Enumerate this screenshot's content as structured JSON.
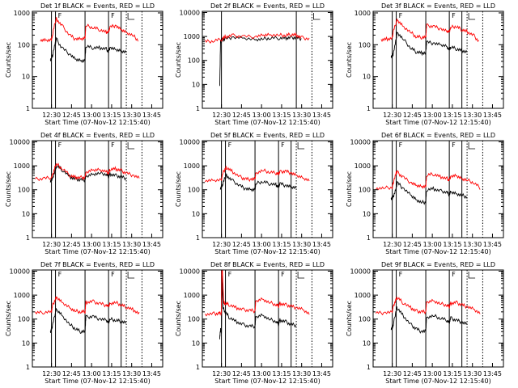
{
  "figure": {
    "xlabel": "Start Time (07-Nov-12 12:15:40)",
    "ylabel": "Counts/sec",
    "x_ticks": [
      "12:30",
      "12:45",
      "13:00",
      "13:15",
      "13:30",
      "13:45"
    ],
    "y_ticks": [
      "1",
      "10",
      "100",
      "1000",
      "10000"
    ],
    "colors": {
      "events": "#000000",
      "lld": "#ff0000"
    }
  },
  "chart_data": [
    {
      "type": "line",
      "title": "Det 1f BLACK = Events, RED = LLD",
      "flag": "F",
      "xlim": [
        "12:15:40",
        "13:53"
      ],
      "ylim": [
        1,
        1200
      ],
      "x_unit": "minutes after 12:15:40",
      "vlines_solid": [
        14.3,
        17.3,
        39.4,
        57.0,
        66.4
      ],
      "vlines_dotted": [
        70.3,
        82.0
      ],
      "series": [
        {
          "name": "Events",
          "x": [
            13.5,
            14.3,
            15,
            17.3,
            18,
            22,
            28,
            32,
            36,
            39.4,
            40,
            45,
            50,
            55,
            57.0,
            58,
            62,
            66,
            70
          ],
          "values": [
            30,
            40,
            45,
            120,
            150,
            80,
            50,
            35,
            32,
            32,
            90,
            80,
            80,
            75,
            60,
            80,
            70,
            65,
            60
          ]
        },
        {
          "name": "LLD",
          "x": [
            6,
            10,
            14.3,
            15,
            17.3,
            18,
            22,
            28,
            32,
            36,
            39.4,
            40,
            45,
            50,
            55,
            57.0,
            58,
            62,
            66,
            70,
            75,
            79
          ],
          "values": [
            140,
            140,
            145,
            200,
            550,
            650,
            400,
            200,
            150,
            150,
            160,
            400,
            350,
            300,
            250,
            250,
            350,
            400,
            300,
            250,
            200,
            140
          ]
        }
      ]
    },
    {
      "type": "line",
      "title": "Det 2f BLACK = Events, RED = LLD",
      "flag": "",
      "xlim": [
        "12:15:40",
        "13:53"
      ],
      "ylim": [
        1,
        12000
      ],
      "x_unit": "minutes after 12:15:40",
      "vlines_solid": [
        14.3,
        70.3
      ],
      "vlines_dotted": [
        82.0
      ],
      "series": [
        {
          "name": "Events",
          "x": [
            13.0,
            13.6,
            14.3,
            17,
            22,
            30,
            39.4,
            45,
            50,
            57,
            62,
            66,
            70,
            74
          ],
          "values": [
            8,
            600,
            700,
            800,
            900,
            850,
            750,
            800,
            850,
            850,
            850,
            900,
            900,
            800
          ],
          "outlier": true
        },
        {
          "name": "LLD",
          "x": [
            2,
            8,
            14.3,
            17,
            22,
            30,
            39.4,
            45,
            50,
            57,
            62,
            66,
            70,
            74,
            80
          ],
          "values": [
            600,
            650,
            750,
            950,
            1100,
            1000,
            950,
            1100,
            1200,
            1150,
            1100,
            1200,
            1150,
            900,
            800
          ]
        }
      ]
    },
    {
      "type": "line",
      "title": "Det 3f BLACK = Events, RED = LLD",
      "flag": "F",
      "xlim": [
        "12:15:40",
        "13:53"
      ],
      "ylim": [
        1,
        1200
      ],
      "x_unit": "minutes after 12:15:40",
      "vlines_solid": [
        14.3,
        17.3,
        39.4,
        57.0,
        66.4
      ],
      "vlines_dotted": [
        70.3,
        82.0
      ],
      "series": [
        {
          "name": "Events",
          "x": [
            13.5,
            14.3,
            15,
            17.3,
            18,
            22,
            28,
            32,
            36,
            39.4,
            40,
            45,
            50,
            55,
            57.0,
            58,
            62,
            66,
            70
          ],
          "values": [
            40,
            45,
            50,
            150,
            250,
            160,
            80,
            60,
            55,
            55,
            120,
            110,
            100,
            90,
            70,
            85,
            75,
            65,
            60
          ]
        },
        {
          "name": "LLD",
          "x": [
            6,
            10,
            14.3,
            15,
            17.3,
            18,
            22,
            28,
            32,
            36,
            39.4,
            40,
            45,
            50,
            55,
            57.0,
            58,
            62,
            66,
            70,
            75,
            79
          ],
          "values": [
            140,
            150,
            160,
            250,
            500,
            600,
            400,
            250,
            180,
            170,
            170,
            400,
            380,
            320,
            260,
            260,
            350,
            380,
            300,
            260,
            200,
            130
          ]
        }
      ]
    },
    {
      "type": "line",
      "title": "Det 4f BLACK = Events, RED = LLD",
      "flag": "F",
      "xlim": [
        "12:15:40",
        "13:53"
      ],
      "ylim": [
        1,
        12000
      ],
      "x_unit": "minutes after 12:15:40",
      "vlines_solid": [
        14.3,
        17.3,
        39.4,
        57.0,
        66.4
      ],
      "vlines_dotted": [
        70.3,
        82.0
      ],
      "series": [
        {
          "name": "Events",
          "x": [
            13.5,
            14.3,
            15,
            17.3,
            18,
            22,
            28,
            32,
            36,
            39.4,
            40,
            45,
            50,
            55,
            57.0,
            58,
            62,
            66,
            70
          ],
          "values": [
            220,
            250,
            300,
            700,
            1000,
            700,
            350,
            280,
            260,
            260,
            350,
            450,
            500,
            450,
            350,
            450,
            400,
            350,
            300
          ]
        },
        {
          "name": "LLD",
          "x": [
            2,
            8,
            14.3,
            15,
            17.3,
            18,
            22,
            28,
            32,
            36,
            39.4,
            40,
            45,
            50,
            55,
            57.0,
            58,
            62,
            66,
            70,
            75,
            80
          ],
          "values": [
            280,
            290,
            320,
            400,
            1000,
            1200,
            800,
            400,
            330,
            320,
            330,
            500,
            650,
            700,
            600,
            500,
            700,
            750,
            650,
            500,
            400,
            300
          ]
        }
      ]
    },
    {
      "type": "line",
      "title": "Det 5f BLACK = Events, RED = LLD",
      "flag": "F",
      "xlim": [
        "12:15:40",
        "13:53"
      ],
      "ylim": [
        1,
        12000
      ],
      "x_unit": "minutes after 12:15:40",
      "vlines_solid": [
        14.3,
        17.3,
        39.4,
        57.0,
        66.4
      ],
      "vlines_dotted": [
        70.3,
        82.0
      ],
      "series": [
        {
          "name": "Events",
          "x": [
            13.5,
            14.3,
            15,
            17.3,
            18,
            22,
            28,
            32,
            36,
            39.4,
            40,
            45,
            50,
            55,
            57.0,
            58,
            62,
            66,
            70
          ],
          "values": [
            120,
            140,
            160,
            350,
            400,
            250,
            150,
            110,
            100,
            100,
            180,
            220,
            180,
            160,
            130,
            180,
            150,
            130,
            120
          ]
        },
        {
          "name": "LLD",
          "x": [
            2,
            8,
            14.3,
            15,
            17.3,
            18,
            22,
            28,
            32,
            36,
            39.4,
            40,
            45,
            50,
            55,
            57.0,
            58,
            62,
            66,
            70,
            75,
            80
          ],
          "values": [
            230,
            240,
            260,
            450,
            800,
            850,
            600,
            350,
            280,
            270,
            270,
            500,
            650,
            550,
            500,
            450,
            550,
            600,
            500,
            400,
            320,
            250
          ]
        }
      ]
    },
    {
      "type": "line",
      "title": "Det 6f BLACK = Events, RED = LLD",
      "flag": "F",
      "xlim": [
        "12:15:40",
        "13:53"
      ],
      "ylim": [
        1,
        12000
      ],
      "x_unit": "minutes after 12:15:40",
      "vlines_solid": [
        14.3,
        17.3,
        39.4,
        57.0,
        66.4
      ],
      "vlines_dotted": [
        70.3,
        82.0
      ],
      "series": [
        {
          "name": "Events",
          "x": [
            13.5,
            14.3,
            15,
            17.3,
            18,
            22,
            28,
            32,
            36,
            39.4,
            40,
            45,
            50,
            55,
            57.0,
            58,
            62,
            66,
            70
          ],
          "values": [
            40,
            45,
            50,
            120,
            200,
            120,
            60,
            40,
            30,
            30,
            100,
            110,
            90,
            80,
            60,
            80,
            70,
            60,
            50
          ]
        },
        {
          "name": "LLD",
          "x": [
            2,
            8,
            14.3,
            15,
            17.3,
            18,
            22,
            28,
            32,
            36,
            39.4,
            40,
            45,
            50,
            55,
            57.0,
            58,
            62,
            66,
            70,
            75,
            80
          ],
          "values": [
            120,
            120,
            125,
            200,
            500,
            550,
            350,
            200,
            150,
            140,
            140,
            400,
            450,
            350,
            300,
            250,
            350,
            380,
            300,
            260,
            200,
            120
          ]
        }
      ]
    },
    {
      "type": "line",
      "title": "Det 7f BLACK = Events, RED = LLD",
      "flag": "F",
      "xlim": [
        "12:15:40",
        "13:53"
      ],
      "ylim": [
        1,
        12000
      ],
      "x_unit": "minutes after 12:15:40",
      "vlines_solid": [
        14.3,
        17.3,
        39.4,
        57.0,
        66.4
      ],
      "vlines_dotted": [
        70.3,
        82.0
      ],
      "series": [
        {
          "name": "Events",
          "x": [
            13.5,
            14.3,
            15,
            17.3,
            18,
            22,
            28,
            32,
            36,
            39.4,
            40,
            45,
            50,
            55,
            57.0,
            58,
            62,
            66,
            70
          ],
          "values": [
            30,
            40,
            50,
            200,
            250,
            150,
            60,
            40,
            30,
            30,
            120,
            130,
            100,
            90,
            70,
            100,
            90,
            80,
            70
          ]
        },
        {
          "name": "LLD",
          "x": [
            2,
            8,
            14.3,
            15,
            17.3,
            18,
            22,
            28,
            32,
            36,
            39.4,
            40,
            45,
            50,
            55,
            57.0,
            58,
            62,
            66,
            70,
            75,
            80
          ],
          "values": [
            180,
            190,
            200,
            350,
            700,
            800,
            500,
            300,
            220,
            200,
            200,
            500,
            550,
            450,
            380,
            330,
            450,
            500,
            400,
            320,
            250,
            170
          ]
        }
      ]
    },
    {
      "type": "line",
      "title": "Det 8f BLACK = Events, RED = LLD",
      "flag": "F",
      "xlim": [
        "12:15:40",
        "13:53"
      ],
      "ylim": [
        1,
        12000
      ],
      "x_unit": "minutes after 12:15:40",
      "vlines_solid": [
        14.3,
        17.3,
        39.4,
        57.0,
        66.4
      ],
      "vlines_dotted": [
        70.3,
        82.0
      ],
      "series": [
        {
          "name": "Events",
          "x": [
            13.0,
            13.6,
            14.3,
            14.8,
            15.5,
            17,
            20,
            25,
            30,
            35,
            39.4,
            40,
            45,
            50,
            55,
            57.0,
            58,
            62,
            66,
            70
          ],
          "values": [
            15,
            40,
            25,
            7000,
            300,
            200,
            120,
            80,
            60,
            50,
            50,
            120,
            150,
            100,
            80,
            60,
            90,
            80,
            60,
            55
          ]
        },
        {
          "name": "LLD",
          "x": [
            2,
            8,
            12,
            14.3,
            14.6,
            15,
            16,
            17,
            20,
            25,
            30,
            35,
            39.4,
            40,
            45,
            50,
            55,
            57.0,
            58,
            62,
            66,
            70,
            75,
            80
          ],
          "values": [
            160,
            170,
            170,
            180,
            12000,
            12000,
            500,
            450,
            400,
            300,
            250,
            230,
            220,
            550,
            700,
            500,
            400,
            350,
            450,
            400,
            350,
            300,
            250,
            160
          ]
        }
      ]
    },
    {
      "type": "line",
      "title": "Det 9f BLACK = Events, RED = LLD",
      "flag": "F",
      "xlim": [
        "12:15:40",
        "13:53"
      ],
      "ylim": [
        1,
        12000
      ],
      "x_unit": "minutes after 12:15:40",
      "vlines_solid": [
        14.3,
        17.3,
        39.4,
        57.0,
        66.4
      ],
      "vlines_dotted": [
        70.3,
        82.0
      ],
      "series": [
        {
          "name": "Events",
          "x": [
            13.5,
            14.3,
            15,
            17.3,
            18,
            22,
            28,
            32,
            36,
            39.4,
            40,
            45,
            50,
            55,
            57.0,
            58,
            62,
            66,
            70
          ],
          "values": [
            40,
            45,
            55,
            250,
            300,
            150,
            60,
            40,
            30,
            30,
            120,
            140,
            110,
            90,
            70,
            110,
            90,
            75,
            60
          ]
        },
        {
          "name": "LLD",
          "x": [
            2,
            8,
            14.3,
            15,
            17.3,
            18,
            22,
            28,
            32,
            36,
            39.4,
            40,
            45,
            50,
            55,
            57.0,
            58,
            62,
            66,
            70,
            75,
            80
          ],
          "values": [
            180,
            180,
            190,
            350,
            700,
            800,
            500,
            300,
            220,
            200,
            200,
            500,
            600,
            450,
            380,
            330,
            450,
            500,
            400,
            330,
            260,
            170
          ]
        }
      ]
    }
  ]
}
